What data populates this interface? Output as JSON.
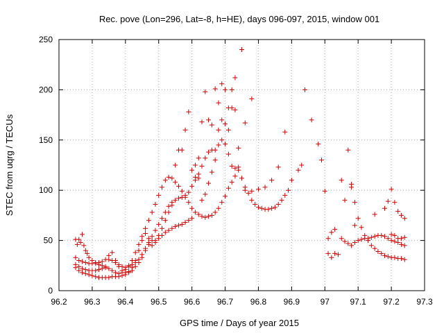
{
  "chart_data": {
    "type": "scatter",
    "title": "Rec. pove (Lon=296, Lat=-8, h=HE), days 096-097, 2015, window 001",
    "xlabel": "GPS time / Days of year 2015",
    "ylabel": "STEC from uqrg / TECUs",
    "xlim": [
      96.2,
      97.3
    ],
    "ylim": [
      0,
      250
    ],
    "xticks": [
      "96.2",
      "96.3",
      "96.4",
      "96.5",
      "96.6",
      "96.7",
      "96.8",
      "96.9",
      "97",
      "97.1",
      "97.2",
      "97.3"
    ],
    "yticks": [
      "0",
      "50",
      "100",
      "150",
      "200",
      "250"
    ],
    "grid": true,
    "marker_color": "#cc0000",
    "series": [
      {
        "values": [
          [
            96.25,
            51
          ],
          [
            96.255,
            46
          ],
          [
            96.26,
            51
          ],
          [
            96.265,
            48
          ],
          [
            96.27,
            56
          ],
          [
            96.275,
            45
          ],
          [
            96.28,
            40
          ],
          [
            96.285,
            37
          ],
          [
            96.29,
            33
          ],
          [
            96.3,
            30
          ],
          [
            96.31,
            28
          ],
          [
            96.32,
            26
          ],
          [
            96.33,
            25
          ],
          [
            96.34,
            23
          ],
          [
            96.35,
            22
          ],
          [
            96.36,
            20
          ],
          [
            96.37,
            18
          ],
          [
            96.38,
            17
          ],
          [
            96.39,
            18
          ],
          [
            96.4,
            21
          ],
          [
            96.41,
            25
          ],
          [
            96.42,
            30
          ],
          [
            96.43,
            38
          ],
          [
            96.44,
            46
          ],
          [
            96.45,
            54
          ],
          [
            96.46,
            62
          ],
          [
            96.47,
            70
          ],
          [
            96.48,
            78
          ],
          [
            96.49,
            86
          ],
          [
            96.5,
            95
          ],
          [
            96.51,
            103
          ],
          [
            96.52,
            110
          ],
          [
            96.53,
            113
          ],
          [
            96.54,
            112
          ],
          [
            96.55,
            108
          ],
          [
            96.56,
            104
          ],
          [
            96.57,
            99
          ],
          [
            96.58,
            95
          ],
          [
            96.59,
            88
          ],
          [
            96.6,
            82
          ],
          [
            96.61,
            78
          ],
          [
            96.62,
            76
          ],
          [
            96.63,
            74
          ],
          [
            96.64,
            73
          ],
          [
            96.65,
            74
          ],
          [
            96.66,
            75
          ],
          [
            96.67,
            78
          ],
          [
            96.68,
            82
          ],
          [
            96.69,
            88
          ],
          [
            96.7,
            94
          ],
          [
            96.71,
            102
          ],
          [
            96.72,
            108
          ],
          [
            96.73,
            114
          ],
          [
            96.74,
            120
          ],
          [
            96.75,
            112
          ],
          [
            96.76,
            103
          ],
          [
            96.77,
            97
          ],
          [
            96.78,
            90
          ],
          [
            96.79,
            86
          ],
          [
            96.8,
            83
          ],
          [
            96.81,
            82
          ],
          [
            96.82,
            81
          ],
          [
            96.83,
            81
          ],
          [
            96.84,
            82
          ],
          [
            96.85,
            83
          ],
          [
            96.86,
            86
          ],
          [
            96.87,
            90
          ],
          [
            96.88,
            95
          ],
          [
            96.89,
            100
          ],
          [
            96.9,
            110
          ],
          [
            96.92,
            120
          ],
          [
            96.93,
            125
          ],
          [
            96.96,
            170
          ],
          [
            96.98,
            146
          ],
          [
            96.99,
            130
          ]
        ]
      },
      {
        "values": [
          [
            96.25,
            33
          ],
          [
            96.26,
            30
          ],
          [
            96.27,
            29
          ],
          [
            96.28,
            28
          ],
          [
            96.29,
            27
          ],
          [
            96.3,
            27
          ],
          [
            96.31,
            27
          ],
          [
            96.32,
            28
          ],
          [
            96.33,
            29
          ],
          [
            96.34,
            31
          ],
          [
            96.35,
            31
          ],
          [
            96.36,
            30
          ],
          [
            96.37,
            28
          ],
          [
            96.38,
            26
          ],
          [
            96.39,
            24
          ],
          [
            96.4,
            23
          ],
          [
            96.41,
            24
          ],
          [
            96.42,
            26
          ],
          [
            96.43,
            28
          ],
          [
            96.44,
            31
          ],
          [
            96.45,
            36
          ],
          [
            96.46,
            42
          ],
          [
            96.47,
            48
          ],
          [
            96.48,
            54
          ],
          [
            96.49,
            60
          ],
          [
            96.5,
            66
          ],
          [
            96.51,
            72
          ],
          [
            96.52,
            78
          ],
          [
            96.53,
            84
          ],
          [
            96.54,
            88
          ],
          [
            96.55,
            90
          ],
          [
            96.56,
            92
          ],
          [
            96.57,
            93
          ],
          [
            96.58,
            93
          ],
          [
            96.59,
            98
          ],
          [
            96.6,
            104
          ],
          [
            96.61,
            110
          ],
          [
            96.62,
            116
          ],
          [
            96.63,
            124
          ],
          [
            96.64,
            132
          ],
          [
            96.65,
            138
          ],
          [
            96.66,
            140
          ],
          [
            96.67,
            140
          ],
          [
            96.68,
            145
          ],
          [
            96.69,
            150
          ],
          [
            96.7,
            146
          ],
          [
            96.71,
            136
          ],
          [
            96.72,
            124
          ],
          [
            96.73,
            122
          ],
          [
            96.74,
            123
          ],
          [
            96.76,
            100
          ],
          [
            96.78,
            99
          ],
          [
            96.8,
            101
          ],
          [
            96.82,
            103
          ],
          [
            96.84,
            110
          ],
          [
            96.86,
            123
          ],
          [
            96.88,
            158
          ]
        ]
      },
      {
        "values": [
          [
            96.25,
            26
          ],
          [
            96.26,
            24
          ],
          [
            96.27,
            22
          ],
          [
            96.28,
            21
          ],
          [
            96.29,
            20
          ],
          [
            96.3,
            20
          ],
          [
            96.31,
            20
          ],
          [
            96.32,
            21
          ],
          [
            96.33,
            22
          ],
          [
            96.34,
            24
          ],
          [
            96.35,
            35
          ],
          [
            96.36,
            38
          ],
          [
            96.37,
            30
          ],
          [
            96.38,
            24
          ],
          [
            96.39,
            20
          ],
          [
            96.4,
            18
          ],
          [
            96.41,
            19
          ],
          [
            96.42,
            23
          ],
          [
            96.43,
            30
          ],
          [
            96.44,
            40
          ],
          [
            96.45,
            50
          ],
          [
            96.46,
            57
          ],
          [
            96.47,
            52
          ],
          [
            96.48,
            45
          ],
          [
            96.49,
            48
          ],
          [
            96.5,
            55
          ],
          [
            96.51,
            62
          ],
          [
            96.52,
            70
          ],
          [
            96.53,
            78
          ],
          [
            96.54,
            85
          ],
          [
            96.55,
            125
          ],
          [
            96.56,
            140
          ],
          [
            96.57,
            140
          ],
          [
            96.58,
            160
          ],
          [
            96.59,
            178
          ],
          [
            96.6,
            120
          ],
          [
            96.61,
            113
          ],
          [
            96.62,
            112
          ],
          [
            96.63,
            90
          ],
          [
            96.64,
            96
          ],
          [
            96.65,
            107
          ],
          [
            96.66,
            118
          ],
          [
            96.67,
            130
          ],
          [
            96.68,
            160
          ],
          [
            96.69,
            170
          ],
          [
            96.7,
            166
          ],
          [
            96.71,
            160
          ],
          [
            96.72,
            182
          ],
          [
            96.73,
            180
          ],
          [
            96.74,
            142
          ],
          [
            96.75,
            240
          ],
          [
            96.76,
            167
          ],
          [
            96.78,
            191
          ]
        ]
      },
      {
        "values": [
          [
            96.25,
            23
          ],
          [
            96.26,
            20
          ],
          [
            96.27,
            18
          ],
          [
            96.28,
            17
          ],
          [
            96.29,
            16
          ],
          [
            96.3,
            15
          ],
          [
            96.31,
            14
          ],
          [
            96.32,
            13
          ],
          [
            96.33,
            13
          ],
          [
            96.34,
            13
          ],
          [
            96.35,
            13
          ],
          [
            96.36,
            14
          ],
          [
            96.37,
            14
          ],
          [
            96.38,
            14
          ],
          [
            96.39,
            15
          ],
          [
            96.4,
            16
          ],
          [
            96.41,
            18
          ],
          [
            96.42,
            20
          ],
          [
            96.43,
            24
          ],
          [
            96.44,
            28
          ],
          [
            96.45,
            33
          ],
          [
            96.46,
            40
          ],
          [
            96.47,
            46
          ],
          [
            96.48,
            50
          ],
          [
            96.49,
            50
          ],
          [
            96.5,
            52
          ],
          [
            96.51,
            55
          ],
          [
            96.52,
            58
          ],
          [
            96.53,
            60
          ],
          [
            96.54,
            62
          ],
          [
            96.55,
            64
          ],
          [
            96.56,
            65
          ],
          [
            96.57,
            66
          ],
          [
            96.58,
            68
          ],
          [
            96.59,
            70
          ],
          [
            96.6,
            72
          ],
          [
            96.61,
            125
          ],
          [
            96.62,
            132
          ],
          [
            96.63,
            168
          ],
          [
            96.64,
            198
          ],
          [
            96.65,
            170
          ],
          [
            96.66,
            165
          ],
          [
            96.67,
            201
          ],
          [
            96.68,
            187
          ],
          [
            96.69,
            206
          ],
          [
            96.7,
            200
          ],
          [
            96.71,
            182
          ],
          [
            96.72,
            200
          ],
          [
            96.73,
            212
          ]
        ]
      },
      {
        "values": [
          [
            96.94,
            200
          ],
          [
            97.01,
            37
          ],
          [
            97.02,
            33
          ],
          [
            97.03,
            37
          ],
          [
            97.04,
            36
          ],
          [
            97.05,
            110
          ],
          [
            97.06,
            90
          ],
          [
            97.07,
            140
          ],
          [
            97.08,
            106
          ],
          [
            97.09,
            88
          ],
          [
            97.1,
            72
          ],
          [
            97.11,
            63
          ],
          [
            97.12,
            55
          ],
          [
            97.13,
            50
          ],
          [
            97.14,
            45
          ],
          [
            97.15,
            42
          ],
          [
            97.16,
            39
          ],
          [
            97.17,
            37
          ],
          [
            97.18,
            35
          ],
          [
            97.19,
            34
          ],
          [
            97.2,
            33
          ],
          [
            97.21,
            33
          ],
          [
            97.22,
            32
          ],
          [
            97.23,
            32
          ],
          [
            97.24,
            31
          ],
          [
            97.01,
            52
          ],
          [
            97.02,
            58
          ],
          [
            97.03,
            61
          ],
          [
            97.05,
            52
          ],
          [
            97.06,
            49
          ],
          [
            97.07,
            47
          ],
          [
            97.08,
            45
          ],
          [
            97.09,
            48
          ],
          [
            97.1,
            50
          ],
          [
            97.11,
            51
          ],
          [
            97.12,
            52
          ],
          [
            97.13,
            52
          ],
          [
            97.14,
            53
          ],
          [
            97.15,
            54
          ],
          [
            97.16,
            55
          ],
          [
            97.17,
            55
          ],
          [
            97.18,
            54
          ],
          [
            97.19,
            52
          ],
          [
            97.2,
            50
          ],
          [
            97.21,
            49
          ],
          [
            97.22,
            48
          ],
          [
            97.23,
            46
          ],
          [
            97.24,
            45
          ],
          [
            97.0,
            99
          ],
          [
            97.08,
            103
          ],
          [
            97.09,
            65
          ],
          [
            97.15,
            76
          ],
          [
            97.18,
            82
          ],
          [
            97.19,
            89
          ],
          [
            97.2,
            101
          ],
          [
            97.21,
            88
          ],
          [
            97.22,
            79
          ],
          [
            97.23,
            75
          ],
          [
            97.24,
            72
          ],
          [
            97.2,
            56
          ],
          [
            97.21,
            55
          ],
          [
            97.22,
            52
          ],
          [
            97.23,
            52
          ],
          [
            97.24,
            53
          ]
        ]
      }
    ]
  }
}
